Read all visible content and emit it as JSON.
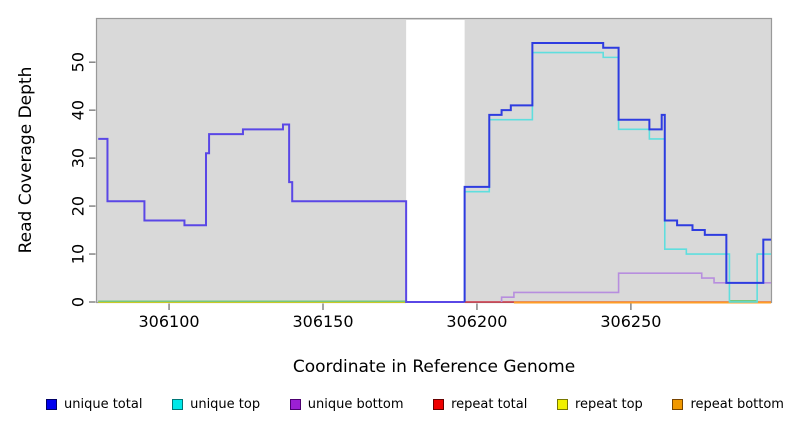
{
  "chart_data": {
    "type": "line",
    "subtype": "step-coverage",
    "title": "",
    "xlabel": "Coordinate in Reference Genome",
    "ylabel": "Read Coverage Depth",
    "x_ticks": [
      306100,
      306150,
      306200,
      306250
    ],
    "y_ticks": [
      0,
      10,
      20,
      30,
      40,
      50
    ],
    "xlim": [
      306076.6,
      306295.5
    ],
    "ylim": [
      0,
      59
    ],
    "grid": "off",
    "plot_background": "#d9d9d9",
    "plot_border": "#999999",
    "gap_region": {
      "x_start": 306177,
      "x_end": 306196,
      "fill": "#ffffff"
    },
    "legend_position": "bottom",
    "legend": [
      {
        "label": "unique total",
        "color": "#0000ee",
        "border": "#000066"
      },
      {
        "label": "unique top",
        "color": "#00e8e8",
        "border": "#007777"
      },
      {
        "label": "unique bottom",
        "color": "#9c1fd4",
        "border": "#4d0070"
      },
      {
        "label": "repeat total",
        "color": "#ee0000",
        "border": "#660000"
      },
      {
        "label": "repeat top",
        "color": "#f0f000",
        "border": "#777700"
      },
      {
        "label": "repeat bottom",
        "color": "#f09800",
        "border": "#774400"
      }
    ],
    "layers": [
      {
        "series": "repeat top (zero coverage)",
        "color": "#d9d900",
        "width": 1.5,
        "dy": 0,
        "steps": [
          [
            306077,
            0
          ]
        ],
        "end": 306177
      },
      {
        "series": "repeat total (zero coverage)",
        "color": "#cc3344",
        "width": 1.6,
        "dy": 0,
        "steps": [
          [
            306196,
            0
          ]
        ],
        "end": 306295.5
      },
      {
        "series": "repeat bottom (zero coverage)",
        "color": "#ff9d26",
        "width": 2,
        "dy": 0.5,
        "steps": [
          [
            306212,
            0
          ]
        ],
        "end": 306295.5
      },
      {
        "series": "unique top (zero coverage, renders green over yellow)",
        "color": "#77c77d",
        "width": 1.5,
        "dy": -0.8,
        "steps": [
          [
            306077,
            0
          ]
        ],
        "end": 306177
      },
      {
        "series": "unique top (zero coverage, renders green over orange)",
        "color": "#77c77d",
        "width": 1.5,
        "dy": -1.2,
        "steps": [
          [
            306282,
            0
          ]
        ],
        "end": 306291
      },
      {
        "series": "unique total + unique bottom coincident (renders violet)",
        "color": "#5a47e6",
        "width": 2,
        "dy": 0,
        "steps": [
          [
            306077,
            34
          ],
          [
            306080,
            21
          ],
          [
            306092,
            17
          ],
          [
            306105,
            16
          ],
          [
            306112,
            31
          ],
          [
            306113,
            35
          ],
          [
            306124,
            36
          ],
          [
            306137,
            37
          ],
          [
            306139,
            25
          ],
          [
            306140,
            21
          ],
          [
            306177,
            0
          ]
        ],
        "end": 306196
      },
      {
        "series": "unique bottom",
        "color": "#b78ede",
        "width": 1.6,
        "dy": 0,
        "steps": [
          [
            306208,
            0
          ],
          [
            306208,
            1
          ],
          [
            306212,
            2
          ],
          [
            306246,
            6
          ],
          [
            306273,
            5
          ],
          [
            306277,
            4
          ]
        ],
        "end": 306295.5
      },
      {
        "series": "unique top",
        "color": "#5fdede",
        "width": 1.6,
        "dy": 0,
        "steps": [
          [
            306196,
            0
          ],
          [
            306196,
            23
          ],
          [
            306204,
            38
          ],
          [
            306218,
            52
          ],
          [
            306241,
            51
          ],
          [
            306246,
            36
          ],
          [
            306256,
            34
          ],
          [
            306261,
            11
          ],
          [
            306268,
            10
          ],
          [
            306282,
            0
          ],
          [
            306291,
            10
          ]
        ],
        "end": 306295.5
      },
      {
        "series": "unique total",
        "color": "#2e3ce0",
        "width": 2,
        "dy": 0,
        "steps": [
          [
            306196,
            0
          ],
          [
            306196,
            24
          ],
          [
            306204,
            39
          ],
          [
            306208,
            40
          ],
          [
            306211,
            41
          ],
          [
            306218,
            54
          ],
          [
            306241,
            53
          ],
          [
            306246,
            38
          ],
          [
            306256,
            36
          ],
          [
            306260,
            39
          ],
          [
            306261,
            17
          ],
          [
            306265,
            16
          ],
          [
            306270,
            15
          ],
          [
            306274,
            14
          ],
          [
            306281,
            4
          ],
          [
            306293,
            13
          ]
        ],
        "end": 306295.5
      }
    ]
  }
}
